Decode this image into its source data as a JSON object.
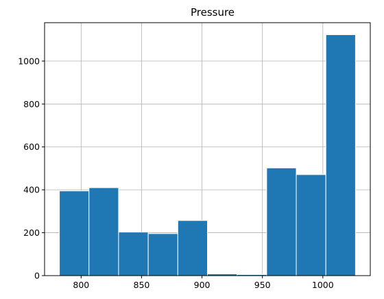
{
  "chart_data": {
    "type": "bar",
    "subtype": "histogram",
    "title": "Pressure",
    "xlabel": "",
    "ylabel": "",
    "bins": [
      {
        "x0": 782.0,
        "x1": 806.5,
        "count": 395
      },
      {
        "x0": 806.5,
        "x1": 831.0,
        "count": 410
      },
      {
        "x0": 831.0,
        "x1": 855.5,
        "count": 203
      },
      {
        "x0": 855.5,
        "x1": 880.0,
        "count": 196
      },
      {
        "x0": 880.0,
        "x1": 904.5,
        "count": 257
      },
      {
        "x0": 904.5,
        "x1": 929.0,
        "count": 8
      },
      {
        "x0": 929.0,
        "x1": 953.5,
        "count": 5
      },
      {
        "x0": 953.5,
        "x1": 978.0,
        "count": 502
      },
      {
        "x0": 978.0,
        "x1": 1002.5,
        "count": 471
      },
      {
        "x0": 1002.5,
        "x1": 1027.0,
        "count": 1123
      }
    ],
    "xlim": [
      769.75,
      1039.25
    ],
    "ylim": [
      0,
      1179
    ],
    "xticks": [
      800,
      850,
      900,
      950,
      1000
    ],
    "yticks": [
      0,
      200,
      400,
      600,
      800,
      1000
    ],
    "grid": true,
    "bar_color": "#1f77b4",
    "edge_color": "#ffffff",
    "grid_color": "#b0b0b0"
  }
}
